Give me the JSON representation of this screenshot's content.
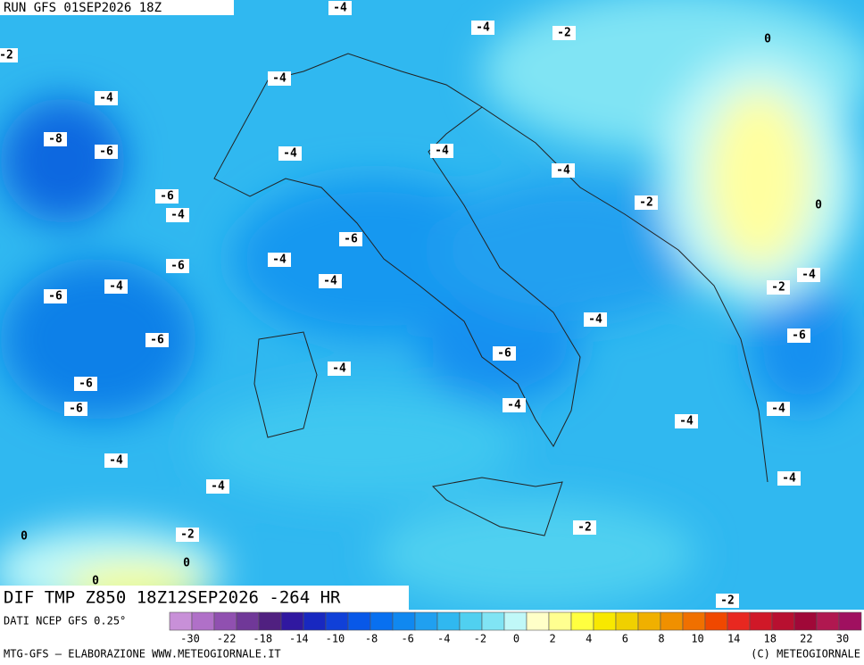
{
  "header": {
    "run": "RUN GFS 01SEP2026 18Z"
  },
  "contour_labels": [
    -4,
    -4,
    -2,
    0,
    -2,
    -4,
    -4,
    -8,
    -6,
    -4,
    -4,
    -4,
    -6,
    -4,
    -2,
    0,
    -6,
    -4,
    -6,
    -4,
    -2,
    -4,
    -4,
    -6,
    -4,
    -6,
    -6,
    -6,
    -4,
    -6,
    -6,
    -4,
    -4,
    -4,
    -4,
    -4,
    -4,
    -2,
    0,
    -2,
    0,
    0,
    -2
  ],
  "footer": {
    "title": "DIF TMP Z850 18Z12SEP2026 -264 HR",
    "source": "DATI NCEP GFS 0.25°",
    "credit": "MTG-GFS — ELABORAZIONE WWW.METEOGIORNALE.IT",
    "copyright": "(C) METEOGIORNALE"
  },
  "colorbar": {
    "colors": [
      "#c890d8",
      "#b070c8",
      "#9050b0",
      "#703898",
      "#502080",
      "#3018a0",
      "#1828c0",
      "#1040d8",
      "#0858e8",
      "#0870f0",
      "#1088f0",
      "#20a0f0",
      "#30b8f0",
      "#50d0f0",
      "#80e4f4",
      "#c0f8f8",
      "#ffffc8",
      "#ffff90",
      "#ffff40",
      "#f8e800",
      "#f0d000",
      "#f0b000",
      "#f09000",
      "#f07000",
      "#f04800",
      "#e82820",
      "#d01828",
      "#b81030",
      "#a00838",
      "#b01850",
      "#a01060"
    ],
    "labels": [
      -30,
      -22,
      -18,
      -14,
      -10,
      -8,
      -6,
      -4,
      -2,
      0,
      2,
      4,
      6,
      8,
      10,
      14,
      18,
      22,
      30
    ]
  }
}
